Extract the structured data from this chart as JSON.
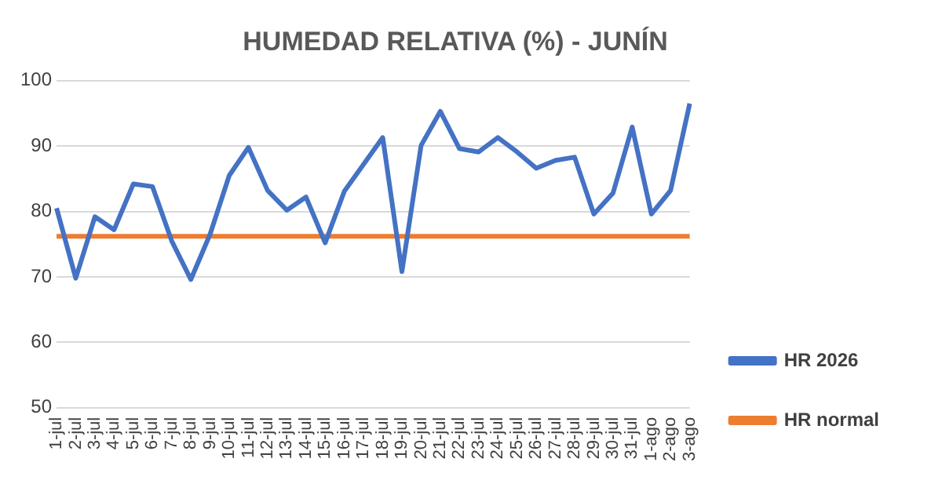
{
  "chart_data": {
    "type": "line",
    "title": "HUMEDAD RELATIVA (%) - JUNÍN",
    "categories": [
      "1-jul",
      "2-jul",
      "3-jul",
      "4-jul",
      "5-jul",
      "6-jul",
      "7-jul",
      "8-jul",
      "9-jul",
      "10-jul",
      "11-jul",
      "12-jul",
      "13-jul",
      "14-jul",
      "15-jul",
      "16-jul",
      "17-jul",
      "18-jul",
      "19-jul",
      "20-jul",
      "21-jul",
      "22-jul",
      "23-jul",
      "24-jul",
      "25-jul",
      "26-jul",
      "27-jul",
      "28-jul",
      "29-jul",
      "30-jul",
      "31-jul",
      "1-ago",
      "2-ago",
      "3-ago"
    ],
    "series": [
      {
        "name": "HR 2026",
        "color": "#4472c4",
        "values": [
          80.5,
          69.8,
          79.2,
          77.2,
          84.2,
          83.8,
          75.5,
          69.6,
          76.5,
          85.5,
          89.8,
          83.2,
          80.2,
          82.2,
          75.2,
          83.1,
          87.2,
          91.3,
          70.8,
          90.1,
          95.3,
          89.6,
          89.1,
          91.3,
          89.1,
          86.6,
          87.8,
          88.3,
          79.6,
          82.8,
          92.9,
          79.6,
          83.2,
          96.5
        ]
      },
      {
        "name": "HR normal",
        "color": "#ed7d31",
        "values": [
          76.2,
          76.2,
          76.2,
          76.2,
          76.2,
          76.2,
          76.2,
          76.2,
          76.2,
          76.2,
          76.2,
          76.2,
          76.2,
          76.2,
          76.2,
          76.2,
          76.2,
          76.2,
          76.2,
          76.2,
          76.2,
          76.2,
          76.2,
          76.2,
          76.2,
          76.2,
          76.2,
          76.2,
          76.2,
          76.2,
          76.2,
          76.2,
          76.2,
          76.2
        ]
      }
    ],
    "ylim": [
      50,
      100
    ],
    "yticks": [
      50,
      60,
      70,
      80,
      90,
      100
    ],
    "grid": "y",
    "legend": "bottom right",
    "marker": "none",
    "line_style": "solid"
  }
}
